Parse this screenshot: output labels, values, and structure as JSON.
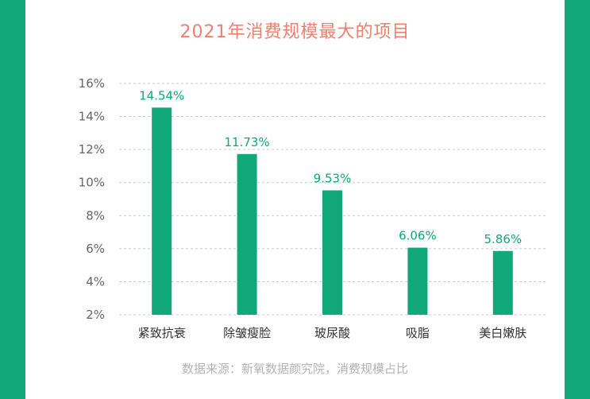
{
  "title": "2021年消费规模最大的项目",
  "footnote": "数据来源：新氧数据颜究院，消费规模占比",
  "colors": {
    "bar": "#10a878",
    "label": "#10a878",
    "title": "#ef7f6e",
    "frame": "#10a878"
  },
  "chart_data": {
    "type": "bar",
    "title": "2021年消费规模最大的项目",
    "xlabel": "",
    "ylabel": "",
    "categories": [
      "紧致抗衰",
      "除皱瘦脸",
      "玻尿酸",
      "吸脂",
      "美白嫩肤"
    ],
    "values": [
      14.54,
      11.73,
      9.53,
      6.06,
      5.86
    ],
    "value_labels": [
      "14.54%",
      "11.73%",
      "9.53%",
      "6.06%",
      "5.86%"
    ],
    "ylim": [
      2,
      16
    ],
    "yticks": [
      2,
      4,
      6,
      8,
      10,
      12,
      14,
      16
    ],
    "ytick_labels": [
      "2%",
      "4%",
      "6%",
      "8%",
      "10%",
      "12%",
      "14%",
      "16%"
    ],
    "grid": true,
    "legend": "none"
  }
}
